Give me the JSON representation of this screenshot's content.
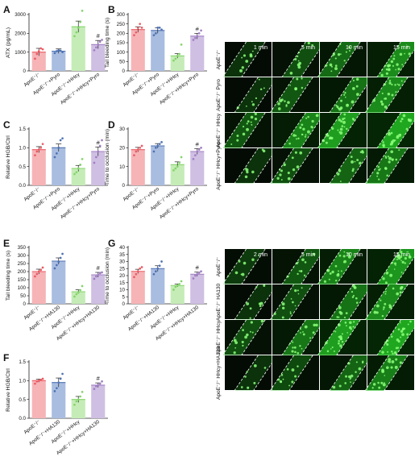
{
  "colors": {
    "ctrl": "#ea5b63",
    "pyro": "#4f72b3",
    "hhcy": "#84d46a",
    "combo": "#a07fc3",
    "ctrl_fill": "#f6b4b7",
    "pyro_fill": "#a9bde0",
    "hhcy_fill": "#c5ecb7",
    "combo_fill": "#cfbfe3"
  },
  "categories_pyro": [
    "ApoE⁻/⁻",
    "ApoE⁻/⁻+Pyro",
    "ApoE⁻/⁻+HHcy",
    "ApoE⁻/⁻+HHcy+Pyro"
  ],
  "categories_ha130": [
    "ApoE⁻/⁻",
    "ApoE⁻/⁻+HA130",
    "ApoE⁻/⁻+HHcy",
    "ApoE⁻/⁻+HHcy+HA130"
  ],
  "sig_mark": "#",
  "chart_data": [
    {
      "panel": "A",
      "type": "bar",
      "ylabel": "ATX (pg/mL)",
      "ylim": [
        0,
        3000
      ],
      "yticks": [
        "0",
        "1000",
        "2000",
        "3000"
      ],
      "values": [
        1000,
        1050,
        2350,
        1400
      ],
      "errors": [
        200,
        120,
        300,
        220
      ],
      "points": [
        [
          650,
          900,
          1050,
          1200,
          1150
        ],
        [
          950,
          1050,
          1100,
          1080,
          1000
        ],
        [
          1850,
          2050,
          2300,
          2600,
          3200
        ],
        [
          1100,
          1250,
          1400,
          1550,
          1650
        ]
      ],
      "sig": [
        false,
        false,
        false,
        true
      ]
    },
    {
      "panel": "B",
      "type": "bar",
      "ylabel": "Tail bleeding time (s)",
      "ylim": [
        0,
        300
      ],
      "yticks": [
        "0",
        "50",
        "100",
        "150",
        "200",
        "250",
        "300"
      ],
      "values": [
        220,
        215,
        80,
        185
      ],
      "errors": [
        15,
        15,
        12,
        15
      ],
      "points": [
        [
          190,
          205,
          230,
          250,
          230
        ],
        [
          190,
          200,
          230,
          230,
          220
        ],
        [
          55,
          65,
          80,
          90,
          140
        ],
        [
          165,
          175,
          185,
          200,
          215
        ]
      ],
      "sig": [
        false,
        false,
        false,
        true
      ]
    },
    {
      "panel": "C",
      "type": "bar",
      "ylabel": "Relative HGB/Ctrl",
      "ylim": [
        0,
        1.5
      ],
      "yticks": [
        "0.0",
        "0.5",
        "1.0",
        "1.5"
      ],
      "values": [
        0.95,
        1.0,
        0.45,
        0.9
      ],
      "errors": [
        0.08,
        0.1,
        0.08,
        0.12
      ],
      "points": [
        [
          0.8,
          0.9,
          0.95,
          1.0,
          1.1
        ],
        [
          0.75,
          0.85,
          1.0,
          1.2,
          1.25
        ],
        [
          0.3,
          0.35,
          0.45,
          0.55,
          0.7
        ],
        [
          0.6,
          0.75,
          0.9,
          1.05,
          1.2
        ]
      ],
      "sig": [
        false,
        false,
        false,
        true
      ]
    },
    {
      "panel": "D",
      "type": "bar",
      "ylabel": "Time to occlusion (min)",
      "ylim": [
        0,
        30
      ],
      "yticks": [
        "0",
        "10",
        "20",
        "30"
      ],
      "values": [
        19,
        21,
        11,
        18
      ],
      "errors": [
        1.2,
        1.2,
        1.5,
        1.5
      ],
      "points": [
        [
          16,
          18,
          19,
          20,
          21
        ],
        [
          18,
          20,
          21,
          22,
          23
        ],
        [
          8,
          9,
          10,
          12,
          15
        ],
        [
          14,
          16,
          18,
          19,
          20
        ]
      ],
      "sig": [
        false,
        false,
        false,
        true
      ]
    },
    {
      "panel": "E",
      "type": "bar",
      "ylabel": "Tail bleeding time (s)",
      "ylim": [
        0,
        350
      ],
      "yticks": [
        "0",
        "50",
        "100",
        "150",
        "200",
        "250",
        "300",
        "350"
      ],
      "values": [
        200,
        265,
        75,
        180
      ],
      "errors": [
        15,
        20,
        12,
        15
      ],
      "points": [
        [
          170,
          185,
          200,
          210,
          225
        ],
        [
          220,
          240,
          260,
          285,
          310
        ],
        [
          45,
          60,
          70,
          85,
          110
        ],
        [
          155,
          170,
          180,
          190,
          195
        ]
      ],
      "sig": [
        false,
        false,
        false,
        true
      ]
    },
    {
      "panel": "G",
      "type": "bar",
      "ylabel": "Time to occlusion (min)",
      "ylim": [
        0,
        40
      ],
      "yticks": [
        "0",
        "5",
        "10",
        "15",
        "20",
        "25",
        "30",
        "35",
        "40"
      ],
      "values": [
        23,
        25,
        13,
        21
      ],
      "errors": [
        1.5,
        2,
        1,
        1.5
      ],
      "points": [
        [
          19,
          21,
          23,
          25,
          26
        ],
        [
          21,
          23,
          25,
          27,
          30
        ],
        [
          10,
          12,
          13,
          14,
          16
        ],
        [
          18,
          20,
          21,
          22,
          23
        ]
      ],
      "sig": [
        false,
        false,
        false,
        true
      ]
    },
    {
      "panel": "F",
      "type": "bar",
      "ylabel": "Relative HGB/Ctrl",
      "ylim": [
        0,
        1.5
      ],
      "yticks": [
        "0.0",
        "0.5",
        "1.0",
        "1.5"
      ],
      "values": [
        1.0,
        0.95,
        0.5,
        0.88
      ],
      "errors": [
        0.04,
        0.12,
        0.08,
        0.06
      ],
      "points": [
        [
          0.92,
          0.98,
          1.0,
          1.02,
          1.05
        ],
        [
          0.72,
          0.8,
          0.95,
          1.05,
          1.18
        ],
        [
          0.36,
          0.45,
          0.5,
          0.58,
          0.7
        ],
        [
          0.78,
          0.85,
          0.88,
          0.92,
          0.98
        ]
      ],
      "sig": [
        false,
        false,
        false,
        true
      ]
    }
  ],
  "micrographs_top": {
    "times": [
      "1 min",
      "5 min",
      "10 min",
      "15 min"
    ],
    "rows": [
      "ApoE⁻/⁻",
      "ApoE⁻/⁻ Pyro",
      "ApoE⁻/⁻ HHcy",
      "ApoE⁻/⁻ HHcy+Pyro"
    ],
    "levels": [
      [
        0.1,
        0.3,
        0.5,
        0.75
      ],
      [
        0.1,
        0.35,
        0.55,
        0.75
      ],
      [
        0.35,
        0.7,
        0.9,
        1.0
      ],
      [
        0.1,
        0.3,
        0.45,
        0.6
      ]
    ]
  },
  "micrographs_bottom": {
    "times": [
      "2 min",
      "5 min",
      "10 min",
      "15 min"
    ],
    "rows": [
      "ApoE⁻/⁻",
      "ApoE⁻/⁻ HA130",
      "ApoE⁻/⁻ HHcy",
      "ApoE⁻/⁻ HHcy+HA130"
    ],
    "levels": [
      [
        0.15,
        0.35,
        0.7,
        0.85
      ],
      [
        0.1,
        0.3,
        0.55,
        0.75
      ],
      [
        0.3,
        0.6,
        0.9,
        1.0
      ],
      [
        0.1,
        0.25,
        0.45,
        0.65
      ]
    ]
  }
}
